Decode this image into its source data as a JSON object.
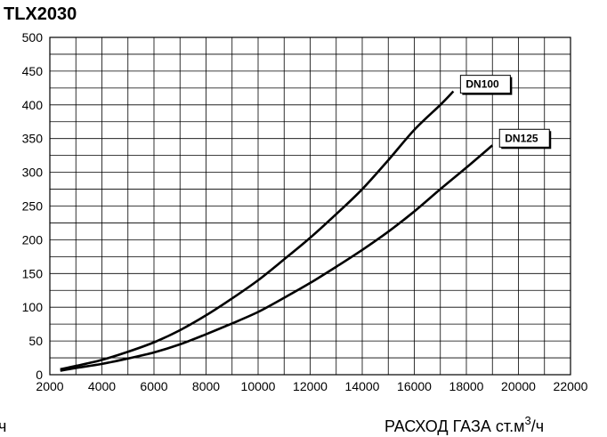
{
  "chart_data": {
    "type": "line",
    "title": "TLX2030",
    "xlabel": "РАСХОД ГАЗА ст.м",
    "xlabel_sup": "3",
    "xlabel_suffix": "/ч",
    "left_edge_label": "ч",
    "xlim": [
      2000,
      22000
    ],
    "ylim": [
      0,
      500
    ],
    "x_major_ticks": [
      2000,
      4000,
      6000,
      8000,
      10000,
      12000,
      14000,
      16000,
      18000,
      20000,
      22000
    ],
    "y_ticks": [
      0,
      50,
      100,
      150,
      200,
      250,
      300,
      350,
      400,
      450,
      500
    ],
    "grid": true,
    "series": [
      {
        "name": "DN100",
        "x": [
          2400,
          3000,
          4000,
          5000,
          6000,
          7000,
          8000,
          9000,
          10000,
          11000,
          12000,
          13000,
          14000,
          15000,
          16000,
          17000,
          17500
        ],
        "y": [
          8,
          13,
          22,
          34,
          48,
          66,
          88,
          113,
          140,
          171,
          203,
          238,
          275,
          318,
          363,
          400,
          420
        ]
      },
      {
        "name": "DN125",
        "x": [
          2400,
          3000,
          4000,
          5000,
          6000,
          7000,
          8000,
          9000,
          10000,
          11000,
          12000,
          13000,
          14000,
          15000,
          16000,
          17000,
          18000,
          19000
        ],
        "y": [
          6,
          10,
          16,
          24,
          33,
          45,
          60,
          76,
          93,
          114,
          136,
          160,
          185,
          212,
          242,
          275,
          307,
          340
        ]
      }
    ]
  }
}
